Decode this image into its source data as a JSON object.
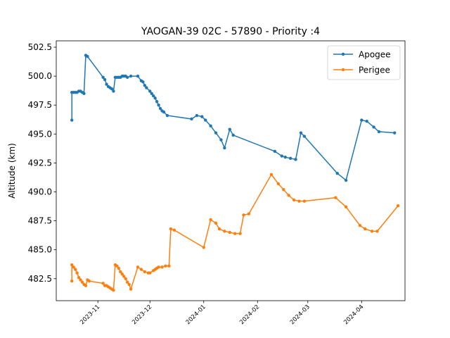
{
  "chart_data": {
    "type": "line",
    "title": "YAOGAN-39 02C - 57890 - Priority :4",
    "xlabel": "",
    "ylabel": "Altitude (km)",
    "x_range": [
      "2023-10-08",
      "2024-04-26"
    ],
    "ylim": [
      480.6,
      503.05
    ],
    "x_ticks": [
      {
        "date": "2023-11-01",
        "label": "2023-11"
      },
      {
        "date": "2023-12-01",
        "label": "2023-12"
      },
      {
        "date": "2024-01-01",
        "label": "2024-01"
      },
      {
        "date": "2024-02-01",
        "label": "2024-02"
      },
      {
        "date": "2024-03-01",
        "label": "2024-03"
      },
      {
        "date": "2024-04-01",
        "label": "2024-04"
      }
    ],
    "y_ticks": [
      482.5,
      485.0,
      487.5,
      490.0,
      492.5,
      495.0,
      497.5,
      500.0,
      502.5
    ],
    "y_tick_labels": [
      "482.5",
      "485.0",
      "487.5",
      "490.0",
      "492.5",
      "495.0",
      "497.5",
      "500.0",
      "502.5"
    ],
    "grid": false,
    "legend": "top-right",
    "series": [
      {
        "name": "Apogee",
        "color": "#1f77b4",
        "points": [
          [
            "2023-10-17",
            496.2
          ],
          [
            "2023-10-17",
            498.6
          ],
          [
            "2023-10-18",
            498.6
          ],
          [
            "2023-10-19",
            498.6
          ],
          [
            "2023-10-20",
            498.6
          ],
          [
            "2023-10-21",
            498.7
          ],
          [
            "2023-10-22",
            498.7
          ],
          [
            "2023-10-23",
            498.6
          ],
          [
            "2023-10-24",
            498.5
          ],
          [
            "2023-10-25",
            501.8
          ],
          [
            "2023-10-26",
            501.7
          ],
          [
            "2023-11-04",
            499.9
          ],
          [
            "2023-11-05",
            499.7
          ],
          [
            "2023-11-06",
            499.3
          ],
          [
            "2023-11-07",
            499.1
          ],
          [
            "2023-11-08",
            499.0
          ],
          [
            "2023-11-09",
            498.9
          ],
          [
            "2023-11-10",
            498.7
          ],
          [
            "2023-11-11",
            499.9
          ],
          [
            "2023-11-12",
            499.9
          ],
          [
            "2023-11-13",
            499.9
          ],
          [
            "2023-11-14",
            499.9
          ],
          [
            "2023-11-15",
            500.0
          ],
          [
            "2023-11-16",
            500.0
          ],
          [
            "2023-11-17",
            500.0
          ],
          [
            "2023-11-18",
            499.9
          ],
          [
            "2023-11-20",
            500.0
          ],
          [
            "2023-11-24",
            500.0
          ],
          [
            "2023-11-26",
            499.6
          ],
          [
            "2023-11-27",
            499.5
          ],
          [
            "2023-11-28",
            499.2
          ],
          [
            "2023-11-29",
            499.0
          ],
          [
            "2023-12-01",
            498.7
          ],
          [
            "2023-12-02",
            498.5
          ],
          [
            "2023-12-03",
            498.3
          ],
          [
            "2023-12-04",
            498.1
          ],
          [
            "2023-12-05",
            497.8
          ],
          [
            "2023-12-06",
            497.5
          ],
          [
            "2023-12-07",
            497.2
          ],
          [
            "2023-12-08",
            497.0
          ],
          [
            "2023-12-09",
            496.9
          ],
          [
            "2023-12-11",
            496.6
          ],
          [
            "2023-12-25",
            496.3
          ],
          [
            "2023-12-28",
            496.6
          ],
          [
            "2023-12-31",
            496.5
          ],
          [
            "2024-01-02",
            496.2
          ],
          [
            "2024-01-05",
            495.7
          ],
          [
            "2024-01-08",
            495.1
          ],
          [
            "2024-01-11",
            494.5
          ],
          [
            "2024-01-13",
            493.8
          ],
          [
            "2024-01-16",
            495.4
          ],
          [
            "2024-01-18",
            494.9
          ],
          [
            "2024-02-11",
            493.5
          ],
          [
            "2024-02-15",
            493.1
          ],
          [
            "2024-02-17",
            493.0
          ],
          [
            "2024-02-20",
            492.9
          ],
          [
            "2024-02-23",
            492.8
          ],
          [
            "2024-02-26",
            495.1
          ],
          [
            "2024-02-28",
            494.8
          ],
          [
            "2024-03-18",
            491.6
          ],
          [
            "2024-03-23",
            491.0
          ],
          [
            "2024-04-01",
            496.2
          ],
          [
            "2024-04-04",
            496.1
          ],
          [
            "2024-04-08",
            495.6
          ],
          [
            "2024-04-11",
            495.2
          ],
          [
            "2024-04-20",
            495.1
          ]
        ]
      },
      {
        "name": "Perigee",
        "color": "#ff7f0e",
        "points": [
          [
            "2023-10-17",
            482.3
          ],
          [
            "2023-10-17",
            483.7
          ],
          [
            "2023-10-18",
            483.5
          ],
          [
            "2023-10-19",
            483.3
          ],
          [
            "2023-10-20",
            483.0
          ],
          [
            "2023-10-21",
            482.6
          ],
          [
            "2023-10-22",
            482.4
          ],
          [
            "2023-10-23",
            482.2
          ],
          [
            "2023-10-24",
            482.0
          ],
          [
            "2023-10-25",
            481.9
          ],
          [
            "2023-10-26",
            482.4
          ],
          [
            "2023-10-27",
            482.3
          ],
          [
            "2023-11-04",
            482.1
          ],
          [
            "2023-11-05",
            481.9
          ],
          [
            "2023-11-06",
            481.9
          ],
          [
            "2023-11-07",
            481.8
          ],
          [
            "2023-11-08",
            481.7
          ],
          [
            "2023-11-09",
            481.6
          ],
          [
            "2023-11-10",
            481.5
          ],
          [
            "2023-11-11",
            483.7
          ],
          [
            "2023-11-12",
            483.6
          ],
          [
            "2023-11-13",
            483.4
          ],
          [
            "2023-11-14",
            483.1
          ],
          [
            "2023-11-15",
            482.9
          ],
          [
            "2023-11-16",
            482.7
          ],
          [
            "2023-11-17",
            482.5
          ],
          [
            "2023-11-18",
            482.2
          ],
          [
            "2023-11-19",
            482.0
          ],
          [
            "2023-11-20",
            481.6
          ],
          [
            "2023-11-24",
            483.5
          ],
          [
            "2023-11-26",
            483.3
          ],
          [
            "2023-11-28",
            483.1
          ],
          [
            "2023-11-30",
            483.0
          ],
          [
            "2023-12-01",
            483.0
          ],
          [
            "2023-12-03",
            483.2
          ],
          [
            "2023-12-04",
            483.3
          ],
          [
            "2023-12-05",
            483.4
          ],
          [
            "2023-12-06",
            483.5
          ],
          [
            "2023-12-08",
            483.5
          ],
          [
            "2023-12-10",
            483.6
          ],
          [
            "2023-12-12",
            483.6
          ],
          [
            "2023-12-13",
            486.8
          ],
          [
            "2023-12-15",
            486.7
          ],
          [
            "2024-01-01",
            485.2
          ],
          [
            "2024-01-05",
            487.6
          ],
          [
            "2024-01-08",
            487.3
          ],
          [
            "2024-01-10",
            486.8
          ],
          [
            "2024-01-13",
            486.6
          ],
          [
            "2024-01-16",
            486.5
          ],
          [
            "2024-01-19",
            486.4
          ],
          [
            "2024-01-22",
            486.4
          ],
          [
            "2024-01-24",
            488.0
          ],
          [
            "2024-01-27",
            488.1
          ],
          [
            "2024-02-09",
            491.5
          ],
          [
            "2024-02-13",
            490.7
          ],
          [
            "2024-02-16",
            490.2
          ],
          [
            "2024-02-19",
            489.7
          ],
          [
            "2024-02-22",
            489.3
          ],
          [
            "2024-02-25",
            489.2
          ],
          [
            "2024-02-28",
            489.2
          ],
          [
            "2024-03-17",
            489.5
          ],
          [
            "2024-03-23",
            488.7
          ],
          [
            "2024-03-31",
            487.1
          ],
          [
            "2024-04-03",
            486.8
          ],
          [
            "2024-04-07",
            486.6
          ],
          [
            "2024-04-10",
            486.6
          ],
          [
            "2024-04-22",
            488.8
          ]
        ]
      }
    ]
  }
}
